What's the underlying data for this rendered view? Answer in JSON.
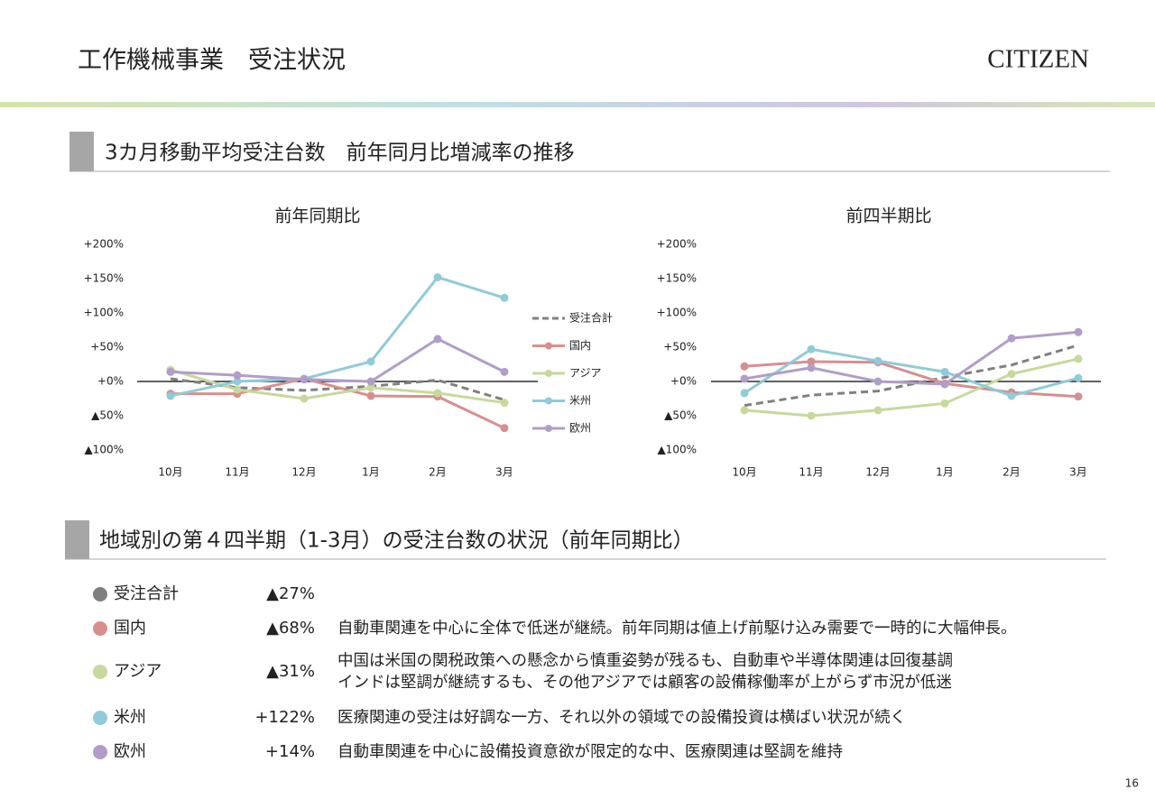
{
  "header": {
    "title": "工作機械事業　受注状況",
    "logo": "CITIZEN"
  },
  "sections": [
    "3カ月移動平均受注台数　前年同月比増減率の推移",
    "地域別の第４四半期（1-3月）の受注台数の状況（前年同期比）"
  ],
  "chart_data": [
    {
      "type": "line",
      "title": "前年同期比",
      "legend": true,
      "categories": [
        "10月",
        "11月",
        "12月",
        "1月",
        "2月",
        "3月"
      ],
      "ylim": [
        -100,
        200
      ],
      "yticks": [
        {
          "value": 200,
          "label": "+200%"
        },
        {
          "value": 150,
          "label": "+150%"
        },
        {
          "value": 100,
          "label": "+100%"
        },
        {
          "value": 50,
          "label": "+50%"
        },
        {
          "value": 0,
          "label": "+0%"
        },
        {
          "value": -50,
          "label": "▲50%"
        },
        {
          "value": -100,
          "label": "▲100%"
        }
      ],
      "series": [
        {
          "name": "受注合計",
          "color": "#808080",
          "line_style": "dashed",
          "values": [
            4,
            -9,
            -13,
            -7,
            2,
            -27
          ]
        },
        {
          "name": "国内",
          "color": "#d98e8e",
          "values": [
            -18,
            -18,
            4,
            -21,
            -22,
            -68
          ]
        },
        {
          "name": "アジア",
          "color": "#c6d99b",
          "values": [
            17,
            -12,
            -25,
            -9,
            -17,
            -31
          ]
        },
        {
          "name": "米州",
          "color": "#8fcbd9",
          "values": [
            -21,
            0,
            4,
            29,
            152,
            122
          ]
        },
        {
          "name": "欧州",
          "color": "#b19dc9",
          "values": [
            14,
            9,
            3,
            0,
            62,
            14
          ]
        }
      ]
    },
    {
      "type": "line",
      "title": "前四半期比",
      "legend": false,
      "categories": [
        "10月",
        "11月",
        "12月",
        "1月",
        "2月",
        "3月"
      ],
      "ylim": [
        -100,
        200
      ],
      "yticks": [
        {
          "value": 200,
          "label": "+200%"
        },
        {
          "value": 150,
          "label": "+150%"
        },
        {
          "value": 100,
          "label": "+100%"
        },
        {
          "value": 50,
          "label": "+50%"
        },
        {
          "value": 0,
          "label": "+0%"
        },
        {
          "value": -50,
          "label": "▲50%"
        },
        {
          "value": -100,
          "label": "▲100%"
        }
      ],
      "series": [
        {
          "color": "#808080",
          "line_style": "dashed",
          "values": [
            -35,
            -20,
            -14,
            6,
            24,
            53
          ]
        },
        {
          "color": "#d98e8e",
          "values": [
            22,
            29,
            28,
            -3,
            -16,
            -22
          ]
        },
        {
          "color": "#c6d99b",
          "values": [
            -42,
            -50,
            -42,
            -32,
            11,
            33
          ]
        },
        {
          "color": "#8fcbd9",
          "values": [
            -17,
            47,
            30,
            14,
            -21,
            5
          ]
        },
        {
          "color": "#b19dc9",
          "values": [
            4,
            20,
            0,
            -4,
            63,
            72
          ]
        }
      ]
    }
  ],
  "table": {
    "rows": [
      {
        "name": "受注合計",
        "color": "#7f7f7f",
        "value": "▲27%",
        "comment": []
      },
      {
        "name": "国内",
        "color": "#d98e8e",
        "value": "▲68%",
        "comment": [
          "自動車関連を中心に全体で低迷が継続。前年同期は値上げ前駆け込み需要で一時的に大幅伸長。"
        ]
      },
      {
        "name": "アジア",
        "color": "#c6d99b",
        "value": "▲31%",
        "comment": [
          "中国は米国の関税政策への懸念から慎重姿勢が残るも、自動車や半導体関連は回復基調",
          "インドは堅調が継続するも、その他アジアでは顧客の設備稼働率が上がらず市況が低迷"
        ]
      },
      {
        "name": "米州",
        "color": "#8fcbd9",
        "value": "+122%",
        "comment": [
          "医療関連の受注は好調な一方、それ以外の領域での設備投資は横ばい状況が続く"
        ]
      },
      {
        "name": "欧州",
        "color": "#b19dc9",
        "value": "+14%",
        "comment": [
          "自動車関連を中心に設備投資意欲が限定的な中、医療関連は堅調を維持"
        ]
      }
    ]
  },
  "page_number": "16"
}
